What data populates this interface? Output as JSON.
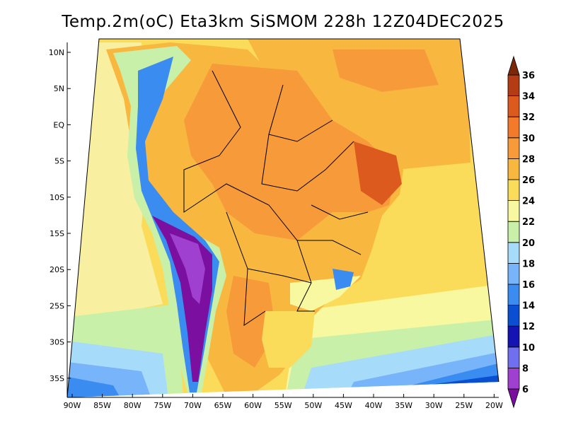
{
  "title": "Temp.2m(oC) Eta3km SiSMOM 228h 12Z04DEC2025",
  "lat_axis": {
    "labels": [
      "10N",
      "5N",
      "EQ",
      "5S",
      "10S",
      "15S",
      "20S",
      "25S",
      "30S",
      "35S"
    ],
    "values": [
      10,
      5,
      0,
      -5,
      -10,
      -15,
      -20,
      -25,
      -30,
      -35
    ]
  },
  "lon_axis": {
    "labels": [
      "90W",
      "85W",
      "80W",
      "75W",
      "70W",
      "65W",
      "60W",
      "55W",
      "50W",
      "45W",
      "40W",
      "35W",
      "30W",
      "25W",
      "20W"
    ],
    "values": [
      -90,
      -85,
      -80,
      -75,
      -70,
      -65,
      -60,
      -55,
      -50,
      -45,
      -40,
      -35,
      -30,
      -25,
      -20
    ]
  },
  "colorbar": {
    "labels": [
      "6",
      "8",
      "10",
      "12",
      "14",
      "16",
      "18",
      "20",
      "22",
      "24",
      "26",
      "28",
      "30",
      "32",
      "34",
      "36"
    ],
    "values": [
      6,
      8,
      10,
      12,
      14,
      16,
      18,
      20,
      22,
      24,
      26,
      28,
      30,
      32,
      34,
      36
    ],
    "colors": [
      "#7a0fa0",
      "#a040d0",
      "#6f6ff0",
      "#1414b4",
      "#0a4fd2",
      "#3a8cf0",
      "#78b4fa",
      "#a6dcfa",
      "#c8f0a8",
      "#f8f8a0",
      "#fadc5a",
      "#f8b840",
      "#f69a3a",
      "#f27a2a",
      "#dc5a1e",
      "#b43c14",
      "#7a2808"
    ]
  },
  "temperature_field": {
    "units": "oC",
    "ocean_north_atlantic": "26-30",
    "ocean_pacific_tropical": "24-26",
    "ocean_south_atlantic_far_south": "10-16",
    "andes_high": "6-12",
    "amazon_interior": "28-32",
    "northeast_brazil": "30-34",
    "southern_brazil": "22-26"
  }
}
